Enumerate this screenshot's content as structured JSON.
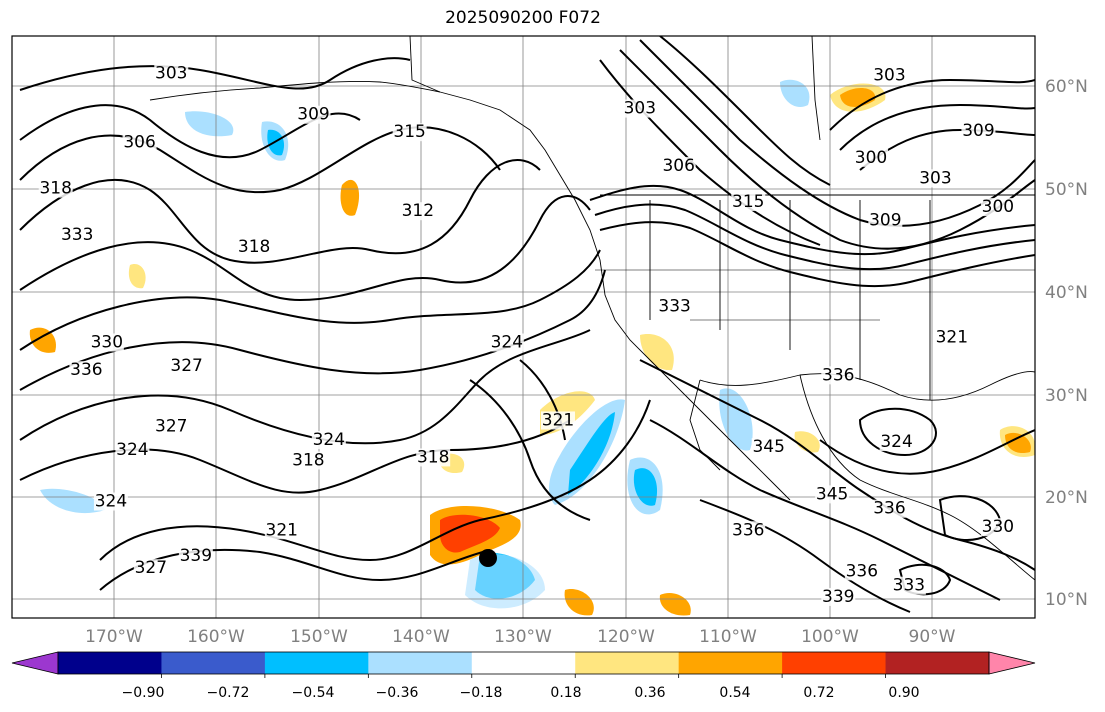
{
  "title": "2025090200 F072",
  "lat_labels": [
    "60°N",
    "50°N",
    "40°N",
    "30°N",
    "20°N",
    "10°N"
  ],
  "lon_labels": [
    "170°W",
    "160°W",
    "150°W",
    "140°W",
    "130°W",
    "120°W",
    "110°W",
    "100°W",
    "90°W"
  ],
  "colorbar": {
    "colors": [
      "#9c37cf",
      "#00008c",
      "#3a5bcc",
      "#00bfff",
      "#abe0ff",
      "#ffffff",
      "#ffe680",
      "#ffa500",
      "#ff4000",
      "#b22222",
      "#ff85aa"
    ],
    "ticks": [
      "−0.90",
      "−0.72",
      "−0.54",
      "−0.36",
      "−0.18",
      "0.18",
      "0.36",
      "0.54",
      "0.72",
      "0.90"
    ]
  },
  "contour_labels": [
    {
      "text": "303",
      "lon": 164.4,
      "lat": 61.2
    },
    {
      "text": "306",
      "lon": 167.5,
      "lat": 54.5
    },
    {
      "text": "309",
      "lon": 150.5,
      "lat": 57.2
    },
    {
      "text": "315",
      "lon": 141.1,
      "lat": 55.5
    },
    {
      "text": "318",
      "lon": 175.7,
      "lat": 50.0
    },
    {
      "text": "333",
      "lon": 173.6,
      "lat": 45.5
    },
    {
      "text": "312",
      "lon": 140.3,
      "lat": 47.8
    },
    {
      "text": "318",
      "lon": 156.3,
      "lat": 44.3
    },
    {
      "text": "330",
      "lon": 170.7,
      "lat": 35.0
    },
    {
      "text": "336",
      "lon": 172.7,
      "lat": 32.3
    },
    {
      "text": "327",
      "lon": 162.9,
      "lat": 32.7
    },
    {
      "text": "324",
      "lon": 149.0,
      "lat": 25.5
    },
    {
      "text": "324",
      "lon": 131.6,
      "lat": 35.0
    },
    {
      "text": "321",
      "lon": 126.6,
      "lat": 27.4
    },
    {
      "text": "318",
      "lon": 151.0,
      "lat": 23.5
    },
    {
      "text": "318",
      "lon": 138.8,
      "lat": 23.8
    },
    {
      "text": "324",
      "lon": 168.2,
      "lat": 24.5
    },
    {
      "text": "327",
      "lon": 164.4,
      "lat": 26.8
    },
    {
      "text": "324",
      "lon": 170.3,
      "lat": 19.5
    },
    {
      "text": "321",
      "lon": 153.6,
      "lat": 16.7
    },
    {
      "text": "339",
      "lon": 162.0,
      "lat": 14.2
    },
    {
      "text": "327",
      "lon": 166.4,
      "lat": 13.0
    },
    {
      "text": "303",
      "lon": 118.6,
      "lat": 57.8
    },
    {
      "text": "306",
      "lon": 114.8,
      "lat": 52.2
    },
    {
      "text": "315",
      "lon": 108.0,
      "lat": 48.7
    },
    {
      "text": "333",
      "lon": 115.2,
      "lat": 38.5
    },
    {
      "text": "336",
      "lon": 99.2,
      "lat": 31.8
    },
    {
      "text": "345",
      "lon": 106.0,
      "lat": 24.8
    },
    {
      "text": "345",
      "lon": 99.8,
      "lat": 20.2
    },
    {
      "text": "336",
      "lon": 108.0,
      "lat": 16.7
    },
    {
      "text": "336",
      "lon": 96.9,
      "lat": 12.7
    },
    {
      "text": "339",
      "lon": 99.2,
      "lat": 10.2
    },
    {
      "text": "333",
      "lon": 92.3,
      "lat": 11.3
    },
    {
      "text": "336",
      "lon": 94.2,
      "lat": 18.8
    },
    {
      "text": "324",
      "lon": 93.5,
      "lat": 25.3
    },
    {
      "text": "330",
      "lon": 83.6,
      "lat": 17.0
    },
    {
      "text": "321",
      "lon": 88.1,
      "lat": 35.5
    },
    {
      "text": "303",
      "lon": 94.2,
      "lat": 61.0
    },
    {
      "text": "300",
      "lon": 96.0,
      "lat": 53.0
    },
    {
      "text": "303",
      "lon": 89.7,
      "lat": 51.0
    },
    {
      "text": "300",
      "lon": 83.6,
      "lat": 48.2
    },
    {
      "text": "309",
      "lon": 85.5,
      "lat": 55.6
    },
    {
      "text": "309",
      "lon": 94.6,
      "lat": 46.9
    }
  ]
}
